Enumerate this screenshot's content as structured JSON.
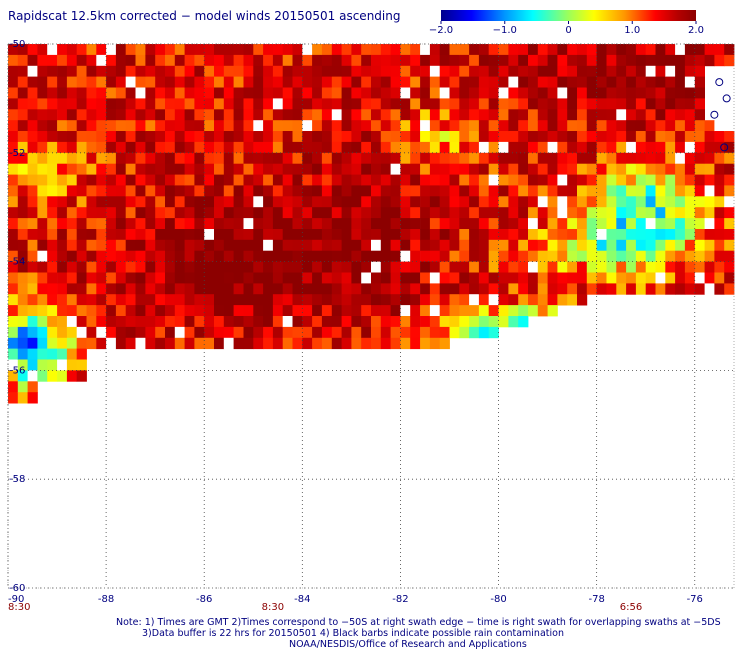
{
  "chart_data": {
    "type": "heatmap",
    "title": "Rapidscat 12.5km corrected − model winds 20150501 ascending",
    "colorbar": {
      "ticks": [
        "−2.0",
        "−1.0",
        "0",
        "1.0",
        "2.0"
      ],
      "tick_values": [
        -2.0,
        -1.0,
        0,
        1.0,
        2.0
      ],
      "range": [
        -2.0,
        2.0
      ],
      "colors": [
        "#00008c",
        "#0000ff",
        "#0096ff",
        "#00ffff",
        "#9cff5a",
        "#ffff00",
        "#ff9600",
        "#ff0000",
        "#b40000",
        "#8c0000"
      ]
    },
    "x_axis": {
      "ticks": [
        "-90",
        "-88",
        "-86",
        "-84",
        "-82",
        "-80",
        "-78",
        "-76"
      ],
      "range": [
        -90,
        -75.2
      ]
    },
    "y_axis": {
      "ticks": [
        "-50",
        "-52",
        "-54",
        "-56",
        "-58",
        "-60"
      ],
      "range": [
        -60,
        -50
      ]
    },
    "time_labels": [
      {
        "text": "8:30",
        "lon": -90
      },
      {
        "text": "8:30",
        "lon": -84.6
      },
      {
        "text": "6:56",
        "lon": -77.3
      }
    ],
    "grid": "dotted",
    "notes": [
      "Note: 1) Times are GMT 2)Times correspond to −50S at right swath edge − time is right swath for overlapping swaths at −5DS",
      "3)Data buffer is 22 hrs for 20150501 4) Black barbs indicate possible rain contamination",
      "NOAA/NESDIS/Office of Research and Applications"
    ],
    "field_summary": [
      {
        "region": "lon -90 to -85, lat -50 to -52.5",
        "value": 1.5
      },
      {
        "region": "lon -87.5 to -83, lat -52.5 to -55.6",
        "value": 2.0
      },
      {
        "region": "lon -83 to -81, lat -52 to -55",
        "value": 1.8
      },
      {
        "region": "lon -90 to -88.5, lat -54.5 to -56.4",
        "value": -0.7
      },
      {
        "region": "lon -80 to -78, lat -55.5 to -56",
        "value": -1.3
      },
      {
        "region": "lon -78 to -76, lat -52.5 to -54",
        "value": -0.5
      },
      {
        "region": "lon -79 to -75.5, lat -50 to -51.5",
        "value": 1.9
      }
    ]
  }
}
